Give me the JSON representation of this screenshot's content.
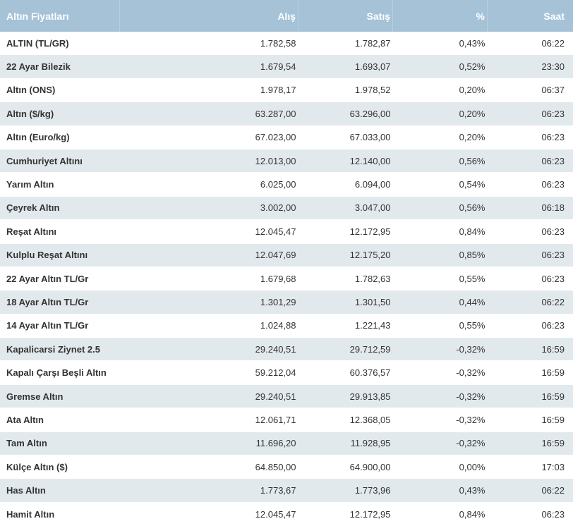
{
  "header": {
    "name": "Altın Fiyatları",
    "buy": "Alış",
    "sell": "Satış",
    "pct": "%",
    "time": "Saat"
  },
  "rows": [
    {
      "name": "ALTIN (TL/GR)",
      "buy": "1.782,58",
      "sell": "1.782,87",
      "pct": "0,43%",
      "time": "06:22"
    },
    {
      "name": "22 Ayar Bilezik",
      "buy": "1.679,54",
      "sell": "1.693,07",
      "pct": "0,52%",
      "time": "23:30"
    },
    {
      "name": "Altın (ONS)",
      "buy": "1.978,17",
      "sell": "1.978,52",
      "pct": "0,20%",
      "time": "06:37"
    },
    {
      "name": "Altın ($/kg)",
      "buy": "63.287,00",
      "sell": "63.296,00",
      "pct": "0,20%",
      "time": "06:23"
    },
    {
      "name": "Altın (Euro/kg)",
      "buy": "67.023,00",
      "sell": "67.033,00",
      "pct": "0,20%",
      "time": "06:23"
    },
    {
      "name": "Cumhuriyet Altını",
      "buy": "12.013,00",
      "sell": "12.140,00",
      "pct": "0,56%",
      "time": "06:23"
    },
    {
      "name": "Yarım Altın",
      "buy": "6.025,00",
      "sell": "6.094,00",
      "pct": "0,54%",
      "time": "06:23"
    },
    {
      "name": "Çeyrek Altın",
      "buy": "3.002,00",
      "sell": "3.047,00",
      "pct": "0,56%",
      "time": "06:18"
    },
    {
      "name": "Reşat Altını",
      "buy": "12.045,47",
      "sell": "12.172,95",
      "pct": "0,84%",
      "time": "06:23"
    },
    {
      "name": "Kulplu Reşat Altını",
      "buy": "12.047,69",
      "sell": "12.175,20",
      "pct": "0,85%",
      "time": "06:23"
    },
    {
      "name": "22 Ayar Altın TL/Gr",
      "buy": "1.679,68",
      "sell": "1.782,63",
      "pct": "0,55%",
      "time": "06:23"
    },
    {
      "name": "18 Ayar Altın TL/Gr",
      "buy": "1.301,29",
      "sell": "1.301,50",
      "pct": "0,44%",
      "time": "06:22"
    },
    {
      "name": "14 Ayar Altın TL/Gr",
      "buy": "1.024,88",
      "sell": "1.221,43",
      "pct": "0,55%",
      "time": "06:23"
    },
    {
      "name": "Kapalicarsi Ziynet 2.5",
      "buy": "29.240,51",
      "sell": "29.712,59",
      "pct": "-0,32%",
      "time": "16:59"
    },
    {
      "name": "Kapalı Çarşı Beşli Altın",
      "buy": "59.212,04",
      "sell": "60.376,57",
      "pct": "-0,32%",
      "time": "16:59"
    },
    {
      "name": "Gremse Altın",
      "buy": "29.240,51",
      "sell": "29.913,85",
      "pct": "-0,32%",
      "time": "16:59"
    },
    {
      "name": "Ata Altın",
      "buy": "12.061,71",
      "sell": "12.368,05",
      "pct": "-0,32%",
      "time": "16:59"
    },
    {
      "name": "Tam Altın",
      "buy": "11.696,20",
      "sell": "11.928,95",
      "pct": "-0,32%",
      "time": "16:59"
    },
    {
      "name": "Külçe Altın ($)",
      "buy": "64.850,00",
      "sell": "64.900,00",
      "pct": "0,00%",
      "time": "17:03"
    },
    {
      "name": "Has Altın",
      "buy": "1.773,67",
      "sell": "1.773,96",
      "pct": "0,43%",
      "time": "06:22"
    },
    {
      "name": "Hamit Altın",
      "buy": "12.045,47",
      "sell": "12.172,95",
      "pct": "0,84%",
      "time": "06:23"
    }
  ],
  "colors": {
    "header_bg": "#a5c2d7",
    "header_text": "#ffffff",
    "row_alt_bg": "#e2e9ed",
    "text": "#333333"
  }
}
